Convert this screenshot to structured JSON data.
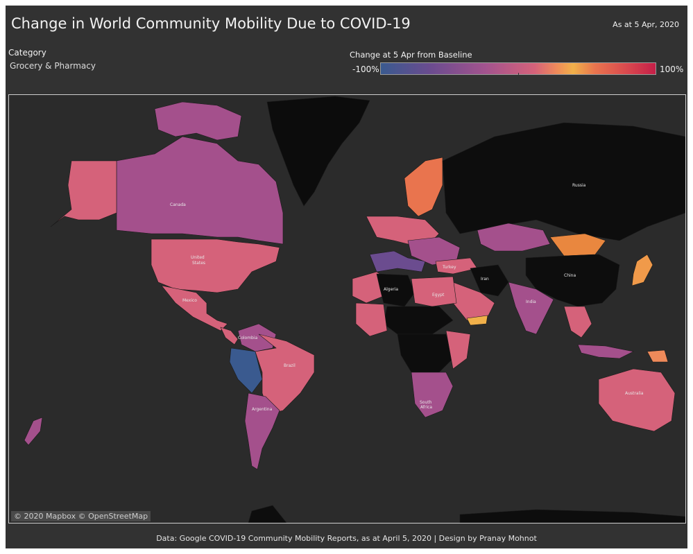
{
  "header": {
    "title": "Change in World Community Mobility Due to COVID-19",
    "as_at": "As at 5 Apr, 2020"
  },
  "filter": {
    "label": "Category",
    "value": "Grocery & Pharmacy"
  },
  "legend": {
    "title": "Change at 5 Apr from Baseline",
    "min_label": "-100%",
    "max_label": "100%",
    "colors": [
      "#3a5a8f",
      "#6b4c8f",
      "#a2538e",
      "#d5627a",
      "#ef8a5a",
      "#f0b04a",
      "#e9744e",
      "#d8474e",
      "#c41f48"
    ]
  },
  "map": {
    "attribution": "© 2020 Mapbox © OpenStreetMap",
    "labels": {
      "canada": "Canada",
      "united_states_1": "United",
      "united_states_2": "States",
      "mexico": "Mexico",
      "colombia": "Colombia",
      "brazil": "Brazil",
      "argentina": "Argentina",
      "algeria": "Algeria",
      "egypt": "Egypt",
      "turkey": "Turkey",
      "iran": "Iran",
      "india": "India",
      "china": "China",
      "russia": "Russia",
      "australia": "Australia",
      "south_africa_1": "South",
      "south_africa_2": "Africa"
    }
  },
  "footer": {
    "text": "Data: Google COVID-19 Community Mobility Reports, as at April 5, 2020 | Design by Pranay Mohnot"
  }
}
